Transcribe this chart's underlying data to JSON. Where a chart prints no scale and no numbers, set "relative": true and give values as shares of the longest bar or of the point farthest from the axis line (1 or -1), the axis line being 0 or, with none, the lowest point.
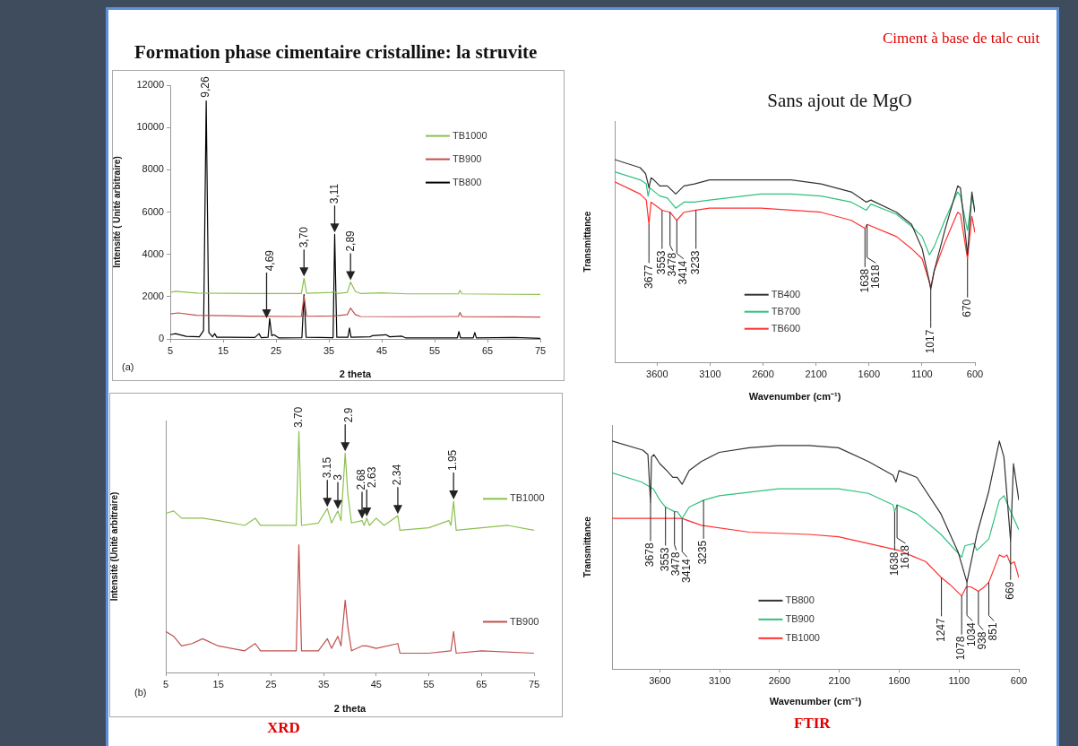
{
  "chart_data": [
    {
      "type": "line",
      "title": "Formation phase cimentaire cristalline: la struvite",
      "xlabel": "2 theta",
      "ylabel": "Intensité ( Unité arbitraire)",
      "xlim": [
        5,
        75
      ],
      "xticks": [
        5,
        15,
        25,
        35,
        45,
        55,
        65,
        75
      ],
      "ylim": [
        0,
        12000
      ],
      "yticks": [
        0,
        2000,
        4000,
        6000,
        8000,
        10000,
        12000
      ],
      "legend": "top right",
      "annotations": [
        "(a)",
        "4,69",
        {
          "text": "9,26",
          "x": 11.8,
          "y": 11250
        },
        {
          "text": "3,70",
          "x": 30.3,
          "y": 2870
        },
        {
          "text": "3,11",
          "x": 36.1,
          "y": 4950
        },
        {
          "text": "2,89",
          "x": 39.1,
          "y": 2690
        }
      ],
      "series": [
        {
          "name": "TB1000",
          "color": "#8cc04f",
          "x": [
            5,
            6,
            10,
            20,
            29.8,
            30.3,
            30.8,
            35.5,
            36,
            36.6,
            38.5,
            39.1,
            40,
            41,
            45,
            50,
            59.5,
            59.8,
            60.2,
            70,
            75
          ],
          "values": [
            2200,
            2250,
            2170,
            2150,
            2150,
            2870,
            2160,
            2200,
            2250,
            2150,
            2200,
            2690,
            2250,
            2150,
            2180,
            2130,
            2130,
            2300,
            2130,
            2110,
            2100
          ]
        },
        {
          "name": "TB900",
          "color": "#c0504d",
          "x": [
            5,
            6.5,
            10,
            20,
            29.8,
            30.3,
            30.8,
            36,
            38.5,
            39.1,
            40,
            41,
            50,
            59.5,
            59.8,
            60.2,
            70,
            75
          ],
          "values": [
            1180,
            1230,
            1120,
            1080,
            1060,
            2020,
            1070,
            1090,
            1150,
            1460,
            1150,
            1060,
            1050,
            1060,
            1250,
            1050,
            1040,
            1030
          ]
        },
        {
          "name": "TB800",
          "color": "#000000",
          "x": [
            5,
            6,
            8,
            10.5,
            11.3,
            11.8,
            12.3,
            13,
            13.4,
            13.8,
            21,
            21.8,
            22.2,
            23.5,
            23.8,
            24.2,
            24.6,
            25.5,
            29.9,
            30.3,
            30.7,
            35.8,
            36.1,
            36.5,
            38.6,
            38.9,
            39.2,
            42.8,
            43.2,
            45.8,
            46.5,
            48.8,
            49.5,
            59.3,
            59.6,
            59.9,
            62.3,
            62.6,
            62.9,
            70,
            75
          ],
          "values": [
            200,
            250,
            120,
            100,
            400,
            11250,
            300,
            100,
            250,
            80,
            70,
            250,
            60,
            80,
            960,
            150,
            200,
            50,
            60,
            2100,
            80,
            60,
            4950,
            80,
            80,
            520,
            80,
            100,
            150,
            200,
            100,
            130,
            50,
            50,
            350,
            50,
            50,
            300,
            50,
            70,
            30
          ]
        }
      ]
    },
    {
      "type": "line",
      "relative": true,
      "xlabel": "2 theta",
      "ylabel": "Intensité (Unité arbitraire)",
      "xlim": [
        5,
        75
      ],
      "xticks": [
        5,
        15,
        25,
        35,
        45,
        55,
        65,
        75
      ],
      "legend": "right",
      "annotations": [
        "(b)",
        "XRD",
        {
          "text": "3.70",
          "x": 30.3,
          "y": 1.0
        },
        {
          "text": "2.9",
          "x": 39.1,
          "y": 0.91
        },
        {
          "text": "3.15",
          "x": 35.7,
          "y": 0.68
        },
        {
          "text": "3",
          "x": 37.7,
          "y": 0.67
        },
        {
          "text": "2.68",
          "x": 42.3,
          "y": 0.63
        },
        {
          "text": "2.63",
          "x": 43.2,
          "y": 0.64
        },
        {
          "text": "2.34",
          "x": 49.1,
          "y": 0.65
        },
        {
          "text": "1.95",
          "x": 59.7,
          "y": 0.71
        }
      ],
      "series": [
        {
          "name": "TB1000",
          "color": "#8cc04f",
          "x": [
            5,
            6.5,
            8,
            10,
            12,
            15,
            20,
            22,
            23,
            29.8,
            30.3,
            30.8,
            34,
            35.7,
            36.5,
            37.7,
            38.3,
            39.1,
            39.6,
            40.3,
            42.3,
            42.7,
            43.2,
            43.7,
            45,
            46.5,
            49.1,
            49.5,
            55,
            58.8,
            59.2,
            59.7,
            60.2,
            65,
            70,
            75
          ],
          "values": [
            0.66,
            0.67,
            0.64,
            0.64,
            0.64,
            0.63,
            0.61,
            0.64,
            0.61,
            0.61,
            1.0,
            0.61,
            0.62,
            0.68,
            0.62,
            0.67,
            0.63,
            0.91,
            0.74,
            0.62,
            0.63,
            0.61,
            0.64,
            0.61,
            0.64,
            0.61,
            0.65,
            0.59,
            0.6,
            0.63,
            0.61,
            0.71,
            0.59,
            0.6,
            0.61,
            0.59
          ]
        },
        {
          "name": "TB900",
          "color": "#c0504d",
          "x": [
            5,
            6.5,
            8,
            10,
            12,
            15,
            20,
            22,
            23,
            29.8,
            30.3,
            30.8,
            34,
            35.7,
            36.5,
            37.7,
            38.3,
            39.1,
            39.6,
            40.3,
            42.3,
            43.2,
            45,
            49.1,
            49.5,
            55,
            59.2,
            59.7,
            60.2,
            65,
            75
          ],
          "values": [
            0.17,
            0.15,
            0.11,
            0.12,
            0.14,
            0.11,
            0.09,
            0.12,
            0.09,
            0.09,
            0.53,
            0.09,
            0.09,
            0.14,
            0.1,
            0.15,
            0.11,
            0.3,
            0.19,
            0.09,
            0.11,
            0.11,
            0.1,
            0.12,
            0.08,
            0.08,
            0.09,
            0.17,
            0.08,
            0.09,
            0.08
          ]
        }
      ]
    },
    {
      "type": "line",
      "relative": true,
      "title": "Sans ajout de MgO",
      "xlabel": "Wavenumber (cm⁻¹)",
      "ylabel": "Transmittance",
      "xlim": [
        4000,
        600
      ],
      "xticks": [
        3600,
        3100,
        2600,
        2100,
        1600,
        1100,
        600
      ],
      "legend": "bottom",
      "annotations": [
        "Ciment à base de talc cuit",
        {
          "text": "3677",
          "x": 3677,
          "y": 0.68
        },
        {
          "text": "3553",
          "x": 3553,
          "y": 0.75
        },
        {
          "text": "3478",
          "x": 3478,
          "y": 0.74
        },
        {
          "text": "3414",
          "x": 3414,
          "y": 0.7
        },
        {
          "text": "3233",
          "x": 3233,
          "y": 0.75
        },
        {
          "text": "1638",
          "x": 1638,
          "y": 0.66
        },
        {
          "text": "1618",
          "x": 1618,
          "y": 0.68
        },
        {
          "text": "1017",
          "x": 1017,
          "y": 0.36
        },
        {
          "text": "670",
          "x": 670,
          "y": 0.51
        }
      ],
      "series": [
        {
          "name": "TB400",
          "color": "#333333",
          "x": [
            4000,
            3760,
            3708,
            3685,
            3677,
            3657,
            3631,
            3574,
            3503,
            3424,
            3347,
            3247,
            3105,
            2621,
            2336,
            2052,
            1767,
            1625,
            1582,
            1340,
            1198,
            1098,
            1027,
            1017,
            985,
            885,
            763,
            737,
            670,
            629,
            600
          ],
          "values": [
            1.0,
            0.96,
            0.93,
            0.88,
            0.86,
            0.91,
            0.9,
            0.87,
            0.87,
            0.83,
            0.87,
            0.88,
            0.9,
            0.9,
            0.9,
            0.88,
            0.84,
            0.79,
            0.8,
            0.74,
            0.68,
            0.56,
            0.39,
            0.36,
            0.45,
            0.65,
            0.87,
            0.86,
            0.53,
            0.84,
            0.74
          ]
        },
        {
          "name": "TB700",
          "color": "#2ec27e",
          "x": [
            4000,
            3760,
            3702,
            3685,
            3668,
            3574,
            3503,
            3424,
            3347,
            3247,
            3105,
            2621,
            2336,
            2052,
            1767,
            1625,
            1582,
            1340,
            1198,
            1098,
            1030,
            985,
            885,
            763,
            737,
            670,
            629,
            600
          ],
          "values": [
            0.94,
            0.9,
            0.88,
            0.82,
            0.86,
            0.82,
            0.81,
            0.76,
            0.79,
            0.79,
            0.8,
            0.83,
            0.83,
            0.82,
            0.79,
            0.75,
            0.78,
            0.73,
            0.67,
            0.62,
            0.53,
            0.57,
            0.7,
            0.84,
            0.82,
            0.65,
            0.82,
            0.74
          ]
        },
        {
          "name": "TB600",
          "color": "#ff3030",
          "x": [
            4000,
            3760,
            3702,
            3677,
            3657,
            3553,
            3478,
            3414,
            3347,
            3233,
            3105,
            2621,
            2336,
            2052,
            1767,
            1638,
            1618,
            1340,
            1198,
            1098,
            1027,
            1017,
            985,
            885,
            763,
            737,
            670,
            629,
            600
          ],
          "values": [
            0.89,
            0.83,
            0.8,
            0.68,
            0.79,
            0.75,
            0.74,
            0.7,
            0.74,
            0.75,
            0.76,
            0.76,
            0.75,
            0.74,
            0.7,
            0.66,
            0.68,
            0.62,
            0.56,
            0.51,
            0.39,
            0.37,
            0.45,
            0.59,
            0.74,
            0.73,
            0.51,
            0.72,
            0.64
          ]
        }
      ]
    },
    {
      "type": "line",
      "relative": true,
      "xlabel": "Wavenumber (cm⁻¹)",
      "ylabel": "Transmittance",
      "xlim": [
        4000,
        600
      ],
      "xticks": [
        3600,
        3100,
        2600,
        2100,
        1600,
        1100,
        600
      ],
      "legend": "bottom",
      "annotations": [
        "FTIR",
        {
          "text": "3678",
          "x": 3678,
          "y": 0.73
        },
        {
          "text": "3553",
          "x": 3553,
          "y": 0.71
        },
        {
          "text": "3478",
          "x": 3478,
          "y": 0.69
        },
        {
          "text": "3414",
          "x": 3414,
          "y": 0.66
        },
        {
          "text": "3235",
          "x": 3235,
          "y": 0.74
        },
        {
          "text": "1638",
          "x": 1638,
          "y": 0.69
        },
        {
          "text": "1618",
          "x": 1618,
          "y": 0.72
        },
        {
          "text": "1247",
          "x": 1247,
          "y": 0.4
        },
        {
          "text": "1078",
          "x": 1078,
          "y": 0.32
        },
        {
          "text": "1034",
          "x": 1034,
          "y": 0.38
        },
        {
          "text": "938",
          "x": 938,
          "y": 0.34
        },
        {
          "text": "851",
          "x": 851,
          "y": 0.38
        },
        {
          "text": "669",
          "x": 669,
          "y": 0.56
        }
      ],
      "series": [
        {
          "name": "TB800",
          "color": "#333333",
          "x": [
            4000,
            3743,
            3700,
            3678,
            3670,
            3650,
            3600,
            3542,
            3492,
            3455,
            3414,
            3355,
            3254,
            3104,
            2854,
            2608,
            2353,
            2108,
            1857,
            1652,
            1627,
            1602,
            1452,
            1251,
            1106,
            1034,
            951,
            851,
            763,
            725,
            669,
            645,
            600
          ],
          "values": [
            1.0,
            0.96,
            0.94,
            0.73,
            0.93,
            0.94,
            0.9,
            0.87,
            0.84,
            0.84,
            0.81,
            0.87,
            0.91,
            0.95,
            0.97,
            0.98,
            0.98,
            0.97,
            0.91,
            0.85,
            0.82,
            0.87,
            0.84,
            0.68,
            0.51,
            0.38,
            0.59,
            0.78,
            1.0,
            0.93,
            0.56,
            0.9,
            0.74
          ]
        },
        {
          "name": "TB900",
          "color": "#2ec27e",
          "x": [
            4000,
            3755,
            3655,
            3600,
            3553,
            3478,
            3455,
            3414,
            3355,
            3235,
            3104,
            2608,
            2108,
            1857,
            1652,
            1638,
            1618,
            1452,
            1251,
            1078,
            1051,
            976,
            951,
            851,
            763,
            725,
            669,
            600
          ],
          "values": [
            0.86,
            0.82,
            0.79,
            0.74,
            0.71,
            0.69,
            0.69,
            0.66,
            0.71,
            0.74,
            0.76,
            0.79,
            0.79,
            0.77,
            0.72,
            0.69,
            0.72,
            0.68,
            0.59,
            0.49,
            0.54,
            0.55,
            0.52,
            0.57,
            0.74,
            0.76,
            0.69,
            0.61
          ]
        },
        {
          "name": "TB1000",
          "color": "#ff3030",
          "x": [
            4000,
            3750,
            3414,
            3254,
            2854,
            2353,
            2108,
            1602,
            1377,
            1247,
            1176,
            1078,
            1039,
            1001,
            938,
            888,
            851,
            763,
            725,
            700,
            669,
            638,
            600
          ],
          "values": [
            0.66,
            0.66,
            0.66,
            0.63,
            0.6,
            0.59,
            0.58,
            0.52,
            0.47,
            0.4,
            0.37,
            0.32,
            0.36,
            0.36,
            0.34,
            0.36,
            0.38,
            0.5,
            0.49,
            0.5,
            0.46,
            0.47,
            0.4
          ]
        }
      ]
    }
  ]
}
